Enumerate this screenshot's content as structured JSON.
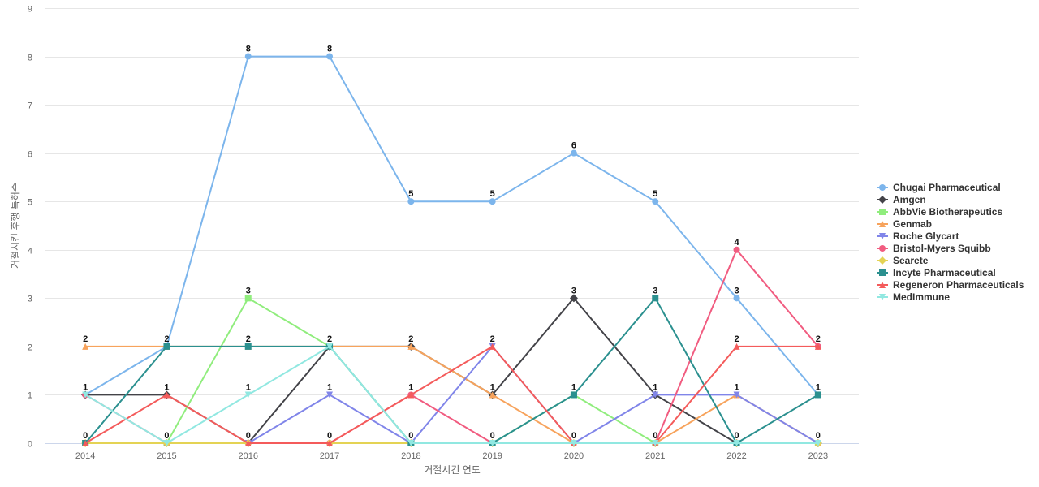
{
  "chart_data": {
    "type": "line",
    "title": "",
    "xlabel": "거절시킨 연도",
    "ylabel": "거절시킨 후행 특허수",
    "categories": [
      "2014",
      "2015",
      "2016",
      "2017",
      "2018",
      "2019",
      "2020",
      "2021",
      "2022",
      "2023"
    ],
    "ylim": [
      0,
      9
    ],
    "yticks": [
      0,
      1,
      2,
      3,
      4,
      5,
      6,
      7,
      8,
      9
    ],
    "grid": true,
    "legend_position": "right",
    "series": [
      {
        "name": "Chugai Pharmaceutical",
        "color": "#7cb5ec",
        "marker": "circle",
        "values": [
          1,
          2,
          8,
          8,
          5,
          5,
          6,
          5,
          3,
          1
        ]
      },
      {
        "name": "Amgen",
        "color": "#434348",
        "marker": "diamond",
        "values": [
          1,
          1,
          0,
          2,
          2,
          1,
          3,
          1,
          0,
          0
        ]
      },
      {
        "name": "AbbVie Biotherapeutics",
        "color": "#90ed7d",
        "marker": "square",
        "values": [
          0,
          0,
          3,
          2,
          0,
          0,
          1,
          0,
          0,
          0
        ]
      },
      {
        "name": "Genmab",
        "color": "#f7a35c",
        "marker": "triangle",
        "values": [
          2,
          2,
          2,
          2,
          2,
          1,
          0,
          0,
          1,
          0
        ]
      },
      {
        "name": "Roche Glycart",
        "color": "#8085e9",
        "marker": "triangle-down",
        "values": [
          0,
          0,
          0,
          1,
          0,
          2,
          0,
          1,
          1,
          0
        ]
      },
      {
        "name": "Bristol-Myers Squibb",
        "color": "#f15c80",
        "marker": "circle",
        "values": [
          1,
          0,
          0,
          0,
          1,
          0,
          0,
          0,
          4,
          2
        ]
      },
      {
        "name": "Searete",
        "color": "#e4d354",
        "marker": "diamond",
        "values": [
          0,
          0,
          0,
          0,
          0,
          0,
          0,
          0,
          0,
          0
        ]
      },
      {
        "name": "Incyte Pharmaceutical",
        "color": "#2b908f",
        "marker": "square",
        "values": [
          0,
          2,
          2,
          2,
          0,
          0,
          1,
          3,
          0,
          1
        ]
      },
      {
        "name": "Regeneron Pharmaceuticals",
        "color": "#f45b5b",
        "marker": "triangle",
        "values": [
          0,
          1,
          0,
          0,
          1,
          2,
          0,
          0,
          2,
          2
        ]
      },
      {
        "name": "MedImmune",
        "color": "#91e8e1",
        "marker": "triangle-down",
        "values": [
          1,
          0,
          1,
          2,
          0,
          0,
          0,
          0,
          0,
          0
        ]
      }
    ],
    "data_labels": [
      {
        "x": "2014",
        "label": "2",
        "y": 2
      },
      {
        "x": "2014",
        "label": "1",
        "y": 1
      },
      {
        "x": "2014",
        "label": "0",
        "y": 0
      },
      {
        "x": "2015",
        "label": "2",
        "y": 2
      },
      {
        "x": "2015",
        "label": "1",
        "y": 1
      },
      {
        "x": "2015",
        "label": "0",
        "y": 0
      },
      {
        "x": "2016",
        "label": "8",
        "y": 8
      },
      {
        "x": "2016",
        "label": "3",
        "y": 3
      },
      {
        "x": "2016",
        "label": "2",
        "y": 2
      },
      {
        "x": "2016",
        "label": "1",
        "y": 1
      },
      {
        "x": "2016",
        "label": "0",
        "y": 0
      },
      {
        "x": "2017",
        "label": "8",
        "y": 8
      },
      {
        "x": "2017",
        "label": "2",
        "y": 2
      },
      {
        "x": "2017",
        "label": "1",
        "y": 1
      },
      {
        "x": "2017",
        "label": "0",
        "y": 0
      },
      {
        "x": "2018",
        "label": "5",
        "y": 5
      },
      {
        "x": "2018",
        "label": "2",
        "y": 2
      },
      {
        "x": "2018",
        "label": "1",
        "y": 1
      },
      {
        "x": "2018",
        "label": "0",
        "y": 0
      },
      {
        "x": "2019",
        "label": "5",
        "y": 5
      },
      {
        "x": "2019",
        "label": "2",
        "y": 2
      },
      {
        "x": "2019",
        "label": "1",
        "y": 1
      },
      {
        "x": "2019",
        "label": "0",
        "y": 0
      },
      {
        "x": "2020",
        "label": "6",
        "y": 6
      },
      {
        "x": "2020",
        "label": "3",
        "y": 3
      },
      {
        "x": "2020",
        "label": "1",
        "y": 1
      },
      {
        "x": "2020",
        "label": "0",
        "y": 0
      },
      {
        "x": "2021",
        "label": "5",
        "y": 5
      },
      {
        "x": "2021",
        "label": "3",
        "y": 3
      },
      {
        "x": "2021",
        "label": "1",
        "y": 1
      },
      {
        "x": "2021",
        "label": "0",
        "y": 0
      },
      {
        "x": "2022",
        "label": "4",
        "y": 4
      },
      {
        "x": "2022",
        "label": "3",
        "y": 3
      },
      {
        "x": "2022",
        "label": "2",
        "y": 2
      },
      {
        "x": "2022",
        "label": "1",
        "y": 1
      },
      {
        "x": "2022",
        "label": "0",
        "y": 0
      },
      {
        "x": "2023",
        "label": "2",
        "y": 2
      },
      {
        "x": "2023",
        "label": "1",
        "y": 1
      },
      {
        "x": "2023",
        "label": "0",
        "y": 0
      }
    ]
  }
}
